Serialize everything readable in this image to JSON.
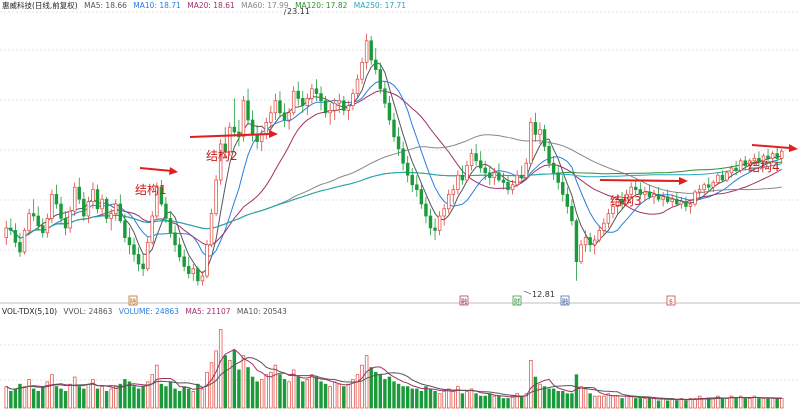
{
  "chart_data": {
    "type": "candlestick",
    "price_header": {
      "title": "惠威科技(日线,前复权)",
      "items": [
        {
          "label": "MA5: 18.66",
          "color": "#555555"
        },
        {
          "label": "MA10: 18.71",
          "color": "#2a7de1"
        },
        {
          "label": "MA20: 18.61",
          "color": "#a0306a"
        },
        {
          "label": "MA60: 17.99",
          "color": "#888888"
        },
        {
          "label": "MA120: 17.82",
          "color": "#2f8f2f"
        },
        {
          "label": "MA250: 17.71",
          "color": "#27a8b8"
        }
      ]
    },
    "volume_header": {
      "title": "VOL-TDX(5,10)",
      "items": [
        {
          "label": "VVOL: 24863",
          "color": "#555555"
        },
        {
          "label": "VOLUME: 24863",
          "color": "#2a7de1"
        },
        {
          "label": "MA5: 21107",
          "color": "#a0306a"
        },
        {
          "label": "MA10: 20543",
          "color": "#555555"
        }
      ]
    },
    "price_range": [
      12.0,
      24.0
    ],
    "annotations": {
      "high_label": "23.11",
      "low_label": "12.81",
      "structures": [
        "结构1",
        "结构2",
        "结构3",
        "结构4"
      ]
    },
    "markers": [
      "除",
      "融",
      "财",
      "融",
      "$"
    ],
    "ohlc": [
      [
        14.6,
        15.3,
        14.3,
        15.0
      ],
      [
        15.0,
        15.4,
        14.7,
        14.9
      ],
      [
        14.9,
        15.2,
        14.2,
        14.4
      ],
      [
        14.4,
        14.8,
        13.8,
        14.0
      ],
      [
        14.0,
        15.0,
        13.9,
        14.9
      ],
      [
        14.9,
        15.8,
        14.7,
        15.6
      ],
      [
        15.6,
        16.2,
        15.3,
        15.5
      ],
      [
        15.5,
        15.9,
        14.9,
        15.1
      ],
      [
        15.1,
        15.4,
        14.6,
        14.8
      ],
      [
        14.8,
        15.6,
        14.6,
        15.4
      ],
      [
        15.4,
        16.6,
        15.2,
        16.4
      ],
      [
        16.4,
        16.8,
        15.8,
        16.0
      ],
      [
        16.0,
        16.3,
        15.2,
        15.4
      ],
      [
        15.4,
        15.7,
        14.7,
        15.0
      ],
      [
        15.0,
        15.9,
        14.8,
        15.7
      ],
      [
        15.7,
        16.9,
        15.5,
        16.7
      ],
      [
        16.7,
        17.1,
        16.0,
        16.2
      ],
      [
        16.2,
        16.5,
        15.3,
        15.5
      ],
      [
        15.5,
        16.3,
        15.2,
        16.1
      ],
      [
        16.1,
        16.9,
        15.8,
        16.6
      ],
      [
        16.6,
        16.8,
        15.6,
        15.8
      ],
      [
        15.8,
        16.4,
        15.6,
        16.2
      ],
      [
        16.2,
        16.3,
        15.2,
        15.4
      ],
      [
        15.4,
        15.8,
        14.9,
        15.6
      ],
      [
        15.6,
        16.2,
        15.3,
        16.0
      ],
      [
        16.0,
        16.4,
        15.2,
        15.3
      ],
      [
        15.3,
        15.6,
        14.4,
        14.6
      ],
      [
        14.6,
        15.0,
        13.9,
        14.3
      ],
      [
        14.3,
        14.6,
        13.6,
        13.9
      ],
      [
        13.9,
        14.2,
        13.2,
        13.5
      ],
      [
        13.5,
        13.9,
        13.0,
        13.3
      ],
      [
        13.3,
        14.6,
        13.2,
        14.4
      ],
      [
        14.4,
        15.7,
        14.3,
        15.5
      ],
      [
        15.5,
        16.9,
        15.4,
        16.7
      ],
      [
        16.7,
        17.0,
        15.9,
        16.0
      ],
      [
        16.0,
        16.3,
        15.2,
        15.4
      ],
      [
        15.4,
        15.7,
        14.6,
        14.8
      ],
      [
        14.8,
        15.1,
        14.0,
        14.3
      ],
      [
        14.3,
        14.6,
        13.6,
        13.8
      ],
      [
        13.8,
        14.1,
        13.2,
        13.4
      ],
      [
        13.4,
        13.8,
        12.9,
        13.1
      ],
      [
        13.1,
        13.5,
        12.8,
        13.3
      ],
      [
        13.3,
        13.4,
        12.6,
        12.8
      ],
      [
        12.8,
        13.2,
        12.6,
        13.0
      ],
      [
        13.0,
        14.5,
        12.9,
        14.3
      ],
      [
        14.3,
        15.8,
        14.2,
        15.6
      ],
      [
        15.6,
        17.2,
        15.5,
        17.0
      ],
      [
        17.0,
        18.7,
        16.8,
        18.5
      ],
      [
        18.5,
        19.2,
        17.9,
        18.2
      ],
      [
        18.2,
        19.4,
        18.0,
        19.2
      ],
      [
        19.2,
        20.4,
        18.8,
        19.0
      ],
      [
        19.0,
        19.5,
        18.4,
        18.8
      ],
      [
        18.8,
        20.5,
        18.6,
        20.3
      ],
      [
        20.3,
        20.8,
        19.3,
        19.5
      ],
      [
        19.5,
        19.9,
        18.6,
        18.9
      ],
      [
        18.9,
        19.3,
        18.3,
        18.6
      ],
      [
        18.6,
        19.1,
        18.2,
        18.9
      ],
      [
        18.9,
        19.6,
        18.7,
        19.4
      ],
      [
        19.4,
        20.1,
        19.0,
        19.8
      ],
      [
        19.8,
        20.6,
        19.5,
        20.3
      ],
      [
        20.3,
        20.7,
        19.6,
        19.8
      ],
      [
        19.8,
        20.2,
        19.2,
        19.5
      ],
      [
        19.5,
        20.0,
        19.1,
        19.8
      ],
      [
        19.8,
        20.9,
        19.7,
        20.7
      ],
      [
        20.7,
        21.1,
        20.1,
        20.4
      ],
      [
        20.4,
        20.7,
        19.8,
        20.1
      ],
      [
        20.1,
        20.6,
        19.7,
        20.4
      ],
      [
        20.4,
        21.0,
        20.2,
        20.8
      ],
      [
        20.8,
        21.2,
        20.3,
        20.6
      ],
      [
        20.6,
        20.9,
        19.9,
        20.3
      ],
      [
        20.3,
        20.5,
        19.6,
        19.8
      ],
      [
        19.8,
        20.2,
        19.3,
        19.9
      ],
      [
        19.9,
        20.4,
        19.5,
        20.2
      ],
      [
        20.2,
        20.6,
        19.8,
        20.3
      ],
      [
        20.3,
        20.5,
        19.7,
        19.9
      ],
      [
        19.9,
        20.3,
        19.5,
        20.1
      ],
      [
        20.1,
        20.8,
        19.9,
        20.6
      ],
      [
        20.6,
        21.4,
        20.4,
        21.2
      ],
      [
        21.2,
        22.1,
        21.0,
        21.9
      ],
      [
        21.9,
        23.1,
        21.6,
        22.8
      ],
      [
        22.8,
        23.0,
        21.8,
        22.0
      ],
      [
        22.0,
        22.5,
        21.4,
        21.6
      ],
      [
        21.6,
        21.9,
        20.6,
        20.8
      ],
      [
        20.8,
        21.1,
        20.0,
        20.2
      ],
      [
        20.2,
        20.5,
        19.3,
        19.5
      ],
      [
        19.5,
        19.8,
        18.6,
        18.8
      ],
      [
        18.8,
        19.2,
        18.0,
        18.3
      ],
      [
        18.3,
        18.6,
        17.4,
        17.7
      ],
      [
        17.7,
        18.0,
        16.9,
        17.2
      ],
      [
        17.2,
        17.5,
        16.5,
        16.8
      ],
      [
        16.8,
        17.2,
        16.3,
        16.6
      ],
      [
        16.6,
        16.8,
        15.8,
        16.0
      ],
      [
        16.0,
        16.3,
        15.2,
        15.5
      ],
      [
        15.5,
        15.8,
        14.7,
        15.0
      ],
      [
        15.0,
        15.4,
        14.5,
        14.9
      ],
      [
        14.9,
        15.7,
        14.7,
        15.5
      ],
      [
        15.5,
        16.0,
        15.1,
        15.8
      ],
      [
        15.8,
        16.6,
        15.6,
        16.4
      ],
      [
        16.4,
        16.8,
        16.0,
        16.6
      ],
      [
        16.6,
        17.4,
        16.4,
        17.2
      ],
      [
        17.2,
        17.6,
        16.8,
        17.0
      ],
      [
        17.0,
        17.8,
        16.9,
        17.6
      ],
      [
        17.6,
        18.3,
        17.4,
        18.1
      ],
      [
        18.1,
        18.5,
        17.6,
        17.8
      ],
      [
        17.8,
        18.2,
        17.3,
        17.5
      ],
      [
        17.5,
        17.8,
        17.0,
        17.3
      ],
      [
        17.3,
        17.6,
        16.8,
        17.1
      ],
      [
        17.1,
        17.5,
        16.8,
        17.3
      ],
      [
        17.3,
        17.7,
        16.9,
        17.0
      ],
      [
        17.0,
        17.3,
        16.6,
        16.9
      ],
      [
        16.9,
        17.2,
        16.4,
        16.6
      ],
      [
        16.6,
        17.0,
        16.4,
        16.8
      ],
      [
        16.8,
        17.4,
        16.7,
        17.2
      ],
      [
        17.2,
        17.6,
        16.9,
        17.1
      ],
      [
        17.1,
        17.9,
        17.0,
        17.7
      ],
      [
        17.7,
        19.6,
        17.6,
        19.4
      ],
      [
        19.4,
        19.8,
        18.6,
        18.9
      ],
      [
        18.9,
        19.4,
        18.5,
        19.1
      ],
      [
        19.1,
        19.3,
        18.2,
        18.4
      ],
      [
        18.4,
        18.6,
        17.5,
        17.7
      ],
      [
        17.7,
        18.0,
        17.0,
        17.3
      ],
      [
        17.3,
        17.6,
        16.6,
        16.9
      ],
      [
        16.9,
        17.2,
        16.1,
        16.4
      ],
      [
        16.4,
        16.7,
        15.6,
        15.9
      ],
      [
        15.9,
        16.2,
        15.1,
        15.3
      ],
      [
        15.3,
        15.4,
        12.8,
        13.6
      ],
      [
        13.6,
        14.5,
        13.5,
        14.3
      ],
      [
        14.3,
        14.9,
        14.0,
        14.6
      ],
      [
        14.6,
        14.8,
        14.0,
        14.3
      ],
      [
        14.3,
        14.7,
        13.9,
        14.5
      ],
      [
        14.5,
        15.1,
        14.4,
        14.9
      ],
      [
        14.9,
        15.4,
        14.7,
        15.2
      ],
      [
        15.2,
        15.8,
        15.0,
        15.6
      ],
      [
        15.6,
        16.1,
        15.4,
        15.9
      ],
      [
        15.9,
        16.4,
        15.6,
        16.2
      ],
      [
        16.2,
        16.5,
        15.8,
        16.0
      ],
      [
        16.0,
        16.6,
        15.9,
        16.4
      ],
      [
        16.4,
        16.9,
        16.2,
        16.7
      ],
      [
        16.7,
        17.0,
        16.4,
        16.6
      ],
      [
        16.6,
        16.9,
        16.2,
        16.4
      ],
      [
        16.4,
        16.7,
        16.1,
        16.5
      ],
      [
        16.5,
        16.8,
        16.2,
        16.3
      ],
      [
        16.3,
        16.6,
        16.0,
        16.4
      ],
      [
        16.4,
        16.7,
        16.1,
        16.2
      ],
      [
        16.2,
        16.5,
        15.9,
        16.3
      ],
      [
        16.3,
        16.6,
        16.0,
        16.1
      ],
      [
        16.1,
        16.4,
        15.9,
        16.2
      ],
      [
        16.2,
        16.5,
        15.9,
        16.0
      ],
      [
        16.0,
        16.3,
        15.8,
        16.1
      ],
      [
        16.1,
        16.3,
        15.7,
        15.9
      ],
      [
        15.9,
        16.2,
        15.6,
        16.0
      ],
      [
        16.0,
        16.6,
        15.9,
        16.5
      ],
      [
        16.5,
        16.8,
        16.3,
        16.6
      ],
      [
        16.6,
        16.9,
        16.4,
        16.8
      ],
      [
        16.8,
        17.1,
        16.5,
        16.7
      ],
      [
        16.7,
        17.0,
        16.5,
        16.9
      ],
      [
        16.9,
        17.3,
        16.8,
        17.2
      ],
      [
        17.2,
        17.4,
        16.9,
        17.0
      ],
      [
        17.0,
        17.4,
        16.9,
        17.3
      ],
      [
        17.3,
        17.6,
        17.1,
        17.5
      ],
      [
        17.5,
        17.8,
        17.2,
        17.4
      ],
      [
        17.4,
        17.9,
        17.3,
        17.8
      ],
      [
        17.8,
        18.0,
        17.4,
        17.6
      ],
      [
        17.6,
        17.9,
        17.4,
        17.8
      ],
      [
        17.8,
        18.1,
        17.6,
        17.9
      ],
      [
        17.9,
        18.2,
        17.6,
        17.8
      ],
      [
        17.8,
        18.1,
        17.6,
        18.0
      ],
      [
        18.0,
        18.3,
        17.8,
        17.9
      ],
      [
        17.9,
        18.2,
        17.7,
        18.1
      ],
      [
        18.1,
        18.4,
        17.8,
        17.9
      ],
      [
        17.9,
        18.3,
        17.7,
        18.2
      ]
    ],
    "volume": [
      9,
      7,
      8,
      10,
      9,
      12,
      8,
      7,
      9,
      11,
      14,
      9,
      8,
      7,
      10,
      13,
      9,
      8,
      10,
      12,
      8,
      9,
      7,
      8,
      9,
      10,
      12,
      11,
      9,
      8,
      9,
      11,
      14,
      18,
      10,
      9,
      11,
      8,
      7,
      9,
      8,
      7,
      10,
      8,
      15,
      19,
      24,
      33,
      22,
      20,
      24,
      16,
      22,
      17,
      13,
      11,
      12,
      14,
      15,
      18,
      14,
      12,
      11,
      16,
      13,
      11,
      12,
      14,
      13,
      11,
      10,
      9,
      11,
      10,
      9,
      10,
      12,
      14,
      18,
      22,
      17,
      15,
      14,
      12,
      13,
      11,
      10,
      9,
      9,
      8,
      8,
      7,
      9,
      8,
      7,
      6,
      7,
      8,
      7,
      9,
      6,
      7,
      8,
      6,
      5,
      5,
      6,
      5,
      5,
      4,
      4,
      5,
      6,
      5,
      6,
      20,
      13,
      10,
      9,
      8,
      8,
      7,
      7,
      6,
      6,
      14,
      9,
      8,
      6,
      5,
      5,
      5,
      6,
      5,
      5,
      4,
      5,
      5,
      4,
      4,
      4,
      4,
      4,
      3,
      4,
      3,
      4,
      3,
      4,
      3,
      4,
      4,
      5,
      4,
      4,
      4,
      5,
      4,
      4,
      5,
      4,
      5,
      4,
      4,
      5,
      4,
      4,
      4,
      4,
      4,
      4
    ]
  }
}
